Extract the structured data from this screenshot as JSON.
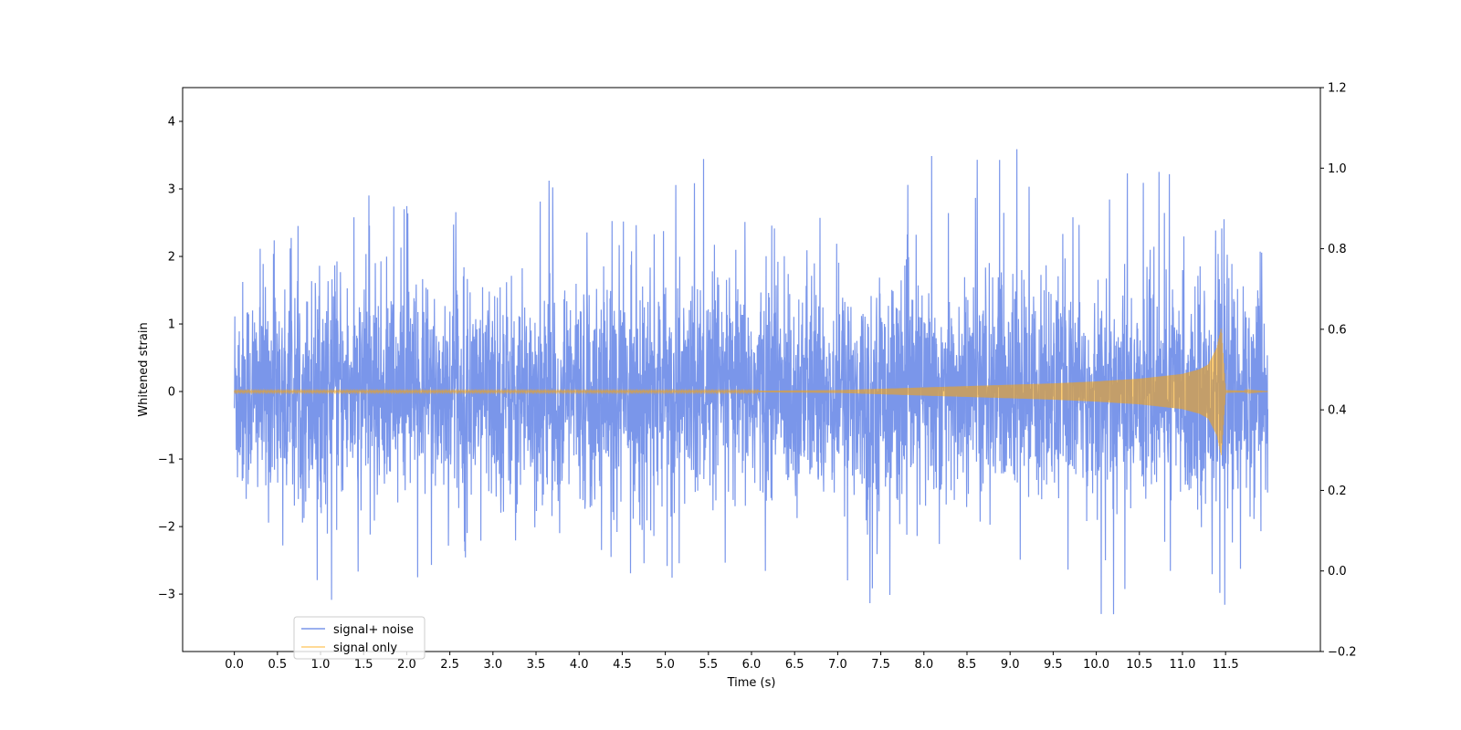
{
  "chart_data": {
    "type": "line",
    "xlabel": "Time (s)",
    "ylabel": "Whitened strain",
    "xlim": [
      -0.6,
      12.6
    ],
    "ylim": [
      -3.85,
      4.5
    ],
    "y2lim": [
      -0.2,
      1.2
    ],
    "xticks": [
      "0.0",
      "0.5",
      "1.0",
      "1.5",
      "2.0",
      "2.5",
      "3.0",
      "3.5",
      "4.0",
      "4.5",
      "5.0",
      "5.5",
      "6.0",
      "6.5",
      "7.0",
      "7.5",
      "8.0",
      "8.5",
      "9.0",
      "9.5",
      "10.0",
      "10.5",
      "11.0",
      "11.5"
    ],
    "yticks": [
      "−3",
      "−2",
      "−1",
      "0",
      "1",
      "2",
      "3",
      "4"
    ],
    "y2ticks": [
      "−0.2",
      "0.0",
      "0.2",
      "0.4",
      "0.6",
      "0.8",
      "1.0",
      "1.2"
    ],
    "grid": false,
    "legend_placement": "lower-left",
    "series": [
      {
        "name": "signal+ noise",
        "color": "#4169e1",
        "description": "dense noise band, approx ±1.2 typical, occasional spikes to ~4.1 and ~-3.5",
        "envelope": {
          "x": [
            0.0,
            0.5,
            1.0,
            1.5,
            2.0,
            2.5,
            3.0,
            3.5,
            4.0,
            4.5,
            5.0,
            5.5,
            6.0,
            6.5,
            7.0,
            7.5,
            8.0,
            8.5,
            9.0,
            9.5,
            10.0,
            10.5,
            11.0,
            11.5,
            11.99
          ],
          "upper": [
            2.05,
            2.5,
            2.4,
            3.1,
            2.95,
            2.5,
            3.7,
            3.35,
            2.6,
            2.5,
            3.15,
            3.55,
            2.75,
            2.55,
            3.35,
            2.7,
            3.8,
            3.45,
            4.12,
            2.6,
            3.1,
            3.35,
            3.45,
            3.45,
            2.8
          ],
          "lower": [
            -1.8,
            -2.55,
            -3.15,
            -2.95,
            -3.35,
            -2.55,
            -2.6,
            -2.45,
            -2.35,
            -2.95,
            -2.95,
            -2.65,
            -3.1,
            -2.75,
            -2.75,
            -3.45,
            -2.6,
            -3.2,
            -2.9,
            -2.55,
            -3.3,
            -3.5,
            -2.8,
            -3.2,
            -2.0
          ]
        }
      },
      {
        "name": "signal only",
        "color": "#ffa500",
        "description": "chirp: near-zero amplitude until ~7 s, growing to ~0.95 at merger at 11.45 s, then ringdown",
        "envelope": {
          "x": [
            0.0,
            6.0,
            7.0,
            7.5,
            8.0,
            8.5,
            9.0,
            9.5,
            10.0,
            10.5,
            11.0,
            11.2,
            11.3,
            11.4,
            11.45,
            11.5,
            11.99
          ],
          "amplitude": [
            0.01,
            0.01,
            0.02,
            0.04,
            0.06,
            0.08,
            0.1,
            0.12,
            0.15,
            0.19,
            0.26,
            0.33,
            0.4,
            0.65,
            0.95,
            0.02,
            0.0
          ]
        }
      }
    ]
  }
}
